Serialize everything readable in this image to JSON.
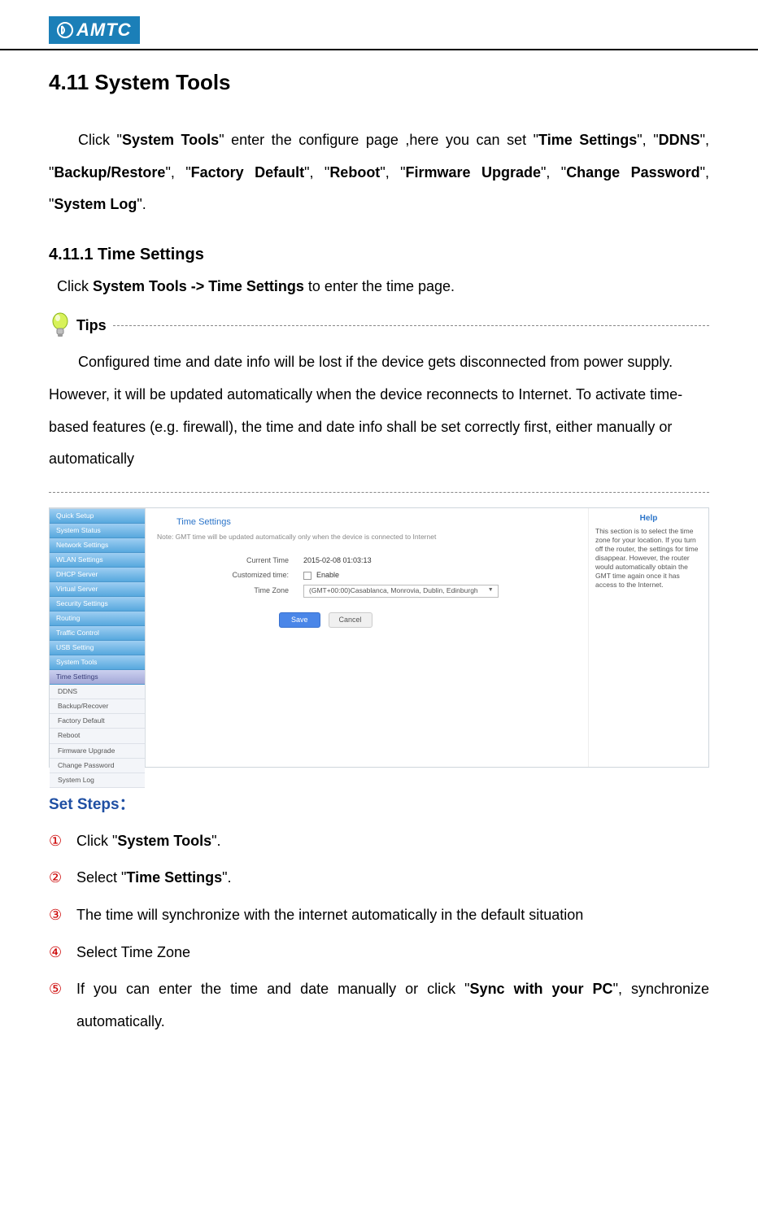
{
  "logo_text": "AMTC",
  "section_title": "4.11 System Tools",
  "intro_parts": {
    "p1a": "Click \"",
    "p1b": "System Tools",
    "p1c": "\" enter the configure page ,here you can set \"",
    "p1d": "Time Settings",
    "p1e": "\", \"",
    "p1f": "DDNS",
    "p1g": "\", \"",
    "p1h": "Backup/Restore",
    "p1i": "\", \"",
    "p1j": "Factory Default",
    "p1k": "\", \"",
    "p1l": "Reboot",
    "p1m": "\", \"",
    "p1n": "Firmware Upgrade",
    "p1o": "\", \"",
    "p1p": "Change Password",
    "p1q": "\", \"",
    "p1r": "System Log",
    "p1s": "\"."
  },
  "sub_title": "4.11.1 Time Settings",
  "sub_line_a": "Click ",
  "sub_line_b": "System Tools -> Time Settings",
  "sub_line_c": " to enter the time page.",
  "tips_label": "Tips",
  "tips_body_1": "Configured time and date info will be lost if the device gets disconnected from power supply. However, it will be updated automatically when the device reconnects to Internet. To activate time-based features (e.g. firewall), the time and date info shall be set correctly first, either manually or automatically",
  "ui": {
    "sidebar_primary": [
      "Quick Setup",
      "System Status",
      "Network Settings",
      "WLAN Settings",
      "DHCP Server",
      "Virtual Server",
      "Security Settings",
      "Routing",
      "Traffic Control",
      "USB Setting",
      "System Tools"
    ],
    "sidebar_active": "Time Settings",
    "sidebar_sub": [
      "DDNS",
      "Backup/Recover",
      "Factory Default",
      "Reboot",
      "Firmware Upgrade",
      "Change Password",
      "System Log"
    ],
    "center_title": "Time Settings",
    "center_note": "Note: GMT time will be updated automatically only when the device is connected to Internet",
    "row1_label": "Current Time",
    "row1_value": "2015-02-08 01:03:13",
    "row2_label": "Customized time:",
    "row2_value": "Enable",
    "row3_label": "Time Zone",
    "row3_value": "(GMT+00:00)Casablanca, Monrovia, Dublin, Edinburgh",
    "save": "Save",
    "cancel": "Cancel",
    "help_title": "Help",
    "help_body": "This section is to select the time zone for your location. If you turn off the router, the settings for time disappear. However, the router would automatically obtain the GMT time again once it has access to the Internet."
  },
  "steps_title": "Set Steps：",
  "steps": [
    {
      "num": "①",
      "pre": "Click \"",
      "bold": "System Tools",
      "post": "\"."
    },
    {
      "num": "②",
      "pre": "Select \"",
      "bold": "Time Settings",
      "post": "\"."
    },
    {
      "num": "③",
      "pre": "The time will synchronize with the internet   automatically in the default situation",
      "bold": "",
      "post": ""
    },
    {
      "num": "④",
      "pre": "Select Time Zone",
      "bold": "",
      "post": ""
    },
    {
      "num": "⑤",
      "pre": "If you can enter the time and date manually or click \"",
      "bold": "Sync with your PC",
      "post": "\", synchronize automatically."
    }
  ],
  "colors": {
    "logo_bg": "#1b7fb8",
    "step_num": "#cc0000",
    "steps_title": "#1f4fa3",
    "link_blue": "#2b74c9",
    "save_btn": "#4a86e8"
  }
}
